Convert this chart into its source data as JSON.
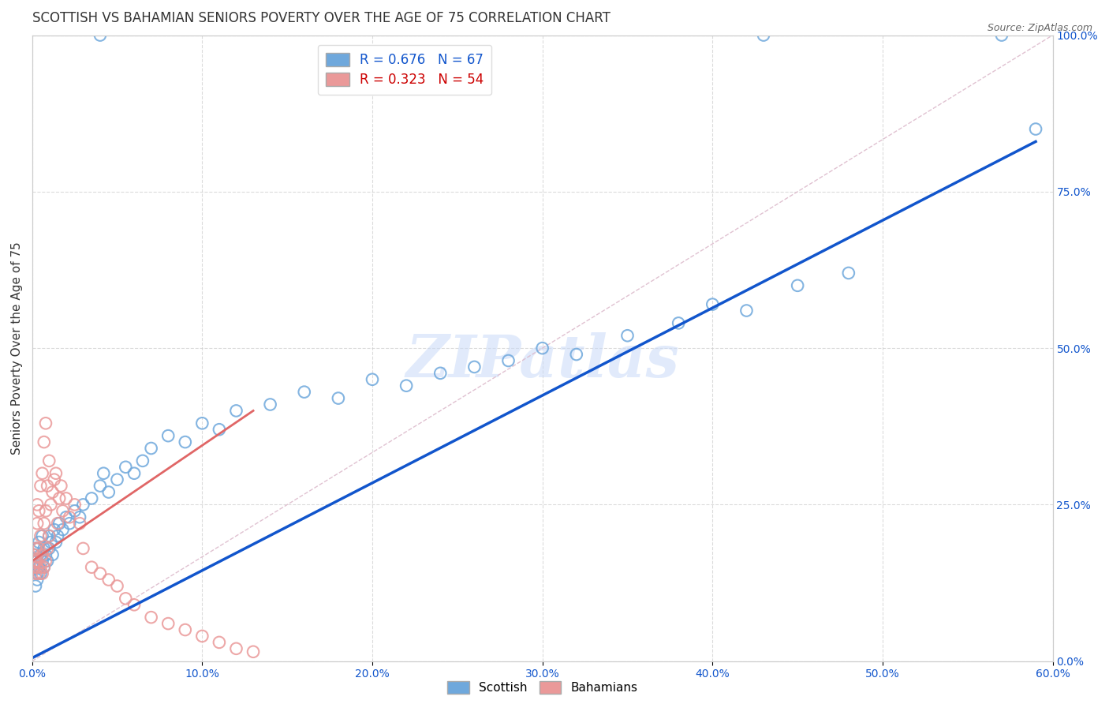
{
  "title": "SCOTTISH VS BAHAMIAN SENIORS POVERTY OVER THE AGE OF 75 CORRELATION CHART",
  "source": "Source: ZipAtlas.com",
  "ylabel": "Seniors Poverty Over the Age of 75",
  "ytick_labels": [
    "0.0%",
    "25.0%",
    "50.0%",
    "75.0%",
    "100.0%"
  ],
  "xtick_labels": [
    "0.0%",
    "10.0%",
    "20.0%",
    "30.0%",
    "40.0%",
    "50.0%",
    "60.0%"
  ],
  "yticks": [
    0.0,
    0.25,
    0.5,
    0.75,
    1.0
  ],
  "xticks": [
    0.0,
    0.1,
    0.2,
    0.3,
    0.4,
    0.5,
    0.6
  ],
  "ylim": [
    0.0,
    1.0
  ],
  "xlim": [
    0.0,
    0.6
  ],
  "legend_entries": [
    {
      "label": "R = 0.676   N = 67",
      "color": "#6fa8dc",
      "text_color": "#1155cc"
    },
    {
      "label": "R = 0.323   N = 54",
      "color": "#ea9999",
      "text_color": "#cc0000"
    }
  ],
  "scottish_color": "#6fa8dc",
  "bahamian_color": "#ea9999",
  "scottish_line_color": "#1155cc",
  "bahamian_line_color": "#e06666",
  "ref_line_color": "#ddbbcc",
  "background_color": "#ffffff",
  "grid_color": "#cccccc",
  "title_fontsize": 12,
  "axis_label_fontsize": 11,
  "tick_fontsize": 10,
  "tick_color": "#1155cc",
  "watermark_text": "ZIPatlas",
  "watermark_color": "#c9daf8",
  "scottish_x": [
    0.001,
    0.001,
    0.002,
    0.002,
    0.002,
    0.003,
    0.003,
    0.003,
    0.003,
    0.004,
    0.004,
    0.005,
    0.005,
    0.006,
    0.006,
    0.007,
    0.007,
    0.008,
    0.009,
    0.01,
    0.01,
    0.011,
    0.012,
    0.013,
    0.014,
    0.015,
    0.016,
    0.018,
    0.02,
    0.022,
    0.025,
    0.028,
    0.03,
    0.035,
    0.04,
    0.042,
    0.045,
    0.05,
    0.055,
    0.06,
    0.065,
    0.07,
    0.08,
    0.09,
    0.1,
    0.11,
    0.12,
    0.14,
    0.16,
    0.18,
    0.2,
    0.22,
    0.24,
    0.26,
    0.28,
    0.3,
    0.32,
    0.35,
    0.38,
    0.4,
    0.42,
    0.45,
    0.48,
    0.04,
    0.43,
    0.57,
    0.59
  ],
  "scottish_y": [
    0.15,
    0.17,
    0.12,
    0.18,
    0.16,
    0.13,
    0.14,
    0.16,
    0.18,
    0.15,
    0.19,
    0.14,
    0.17,
    0.16,
    0.2,
    0.15,
    0.18,
    0.17,
    0.16,
    0.18,
    0.2,
    0.19,
    0.17,
    0.21,
    0.19,
    0.2,
    0.22,
    0.21,
    0.23,
    0.22,
    0.24,
    0.23,
    0.25,
    0.26,
    0.28,
    0.3,
    0.27,
    0.29,
    0.31,
    0.3,
    0.32,
    0.34,
    0.36,
    0.35,
    0.38,
    0.37,
    0.4,
    0.41,
    0.43,
    0.42,
    0.45,
    0.44,
    0.46,
    0.47,
    0.48,
    0.5,
    0.49,
    0.52,
    0.54,
    0.57,
    0.56,
    0.6,
    0.62,
    1.0,
    1.0,
    1.0,
    0.85
  ],
  "bahamian_x": [
    0.001,
    0.001,
    0.002,
    0.002,
    0.002,
    0.003,
    0.003,
    0.003,
    0.003,
    0.004,
    0.004,
    0.004,
    0.005,
    0.005,
    0.005,
    0.006,
    0.006,
    0.006,
    0.007,
    0.007,
    0.007,
    0.008,
    0.008,
    0.008,
    0.009,
    0.009,
    0.01,
    0.01,
    0.011,
    0.012,
    0.013,
    0.014,
    0.015,
    0.016,
    0.017,
    0.018,
    0.02,
    0.022,
    0.025,
    0.028,
    0.03,
    0.035,
    0.04,
    0.045,
    0.05,
    0.055,
    0.06,
    0.07,
    0.08,
    0.09,
    0.1,
    0.11,
    0.12,
    0.13
  ],
  "bahamian_y": [
    0.15,
    0.17,
    0.14,
    0.16,
    0.18,
    0.15,
    0.16,
    0.22,
    0.25,
    0.14,
    0.18,
    0.24,
    0.15,
    0.2,
    0.28,
    0.14,
    0.17,
    0.3,
    0.15,
    0.22,
    0.35,
    0.16,
    0.24,
    0.38,
    0.18,
    0.28,
    0.2,
    0.32,
    0.25,
    0.27,
    0.29,
    0.3,
    0.22,
    0.26,
    0.28,
    0.24,
    0.26,
    0.23,
    0.25,
    0.22,
    0.18,
    0.15,
    0.14,
    0.13,
    0.12,
    0.1,
    0.09,
    0.07,
    0.06,
    0.05,
    0.04,
    0.03,
    0.02,
    0.015
  ]
}
